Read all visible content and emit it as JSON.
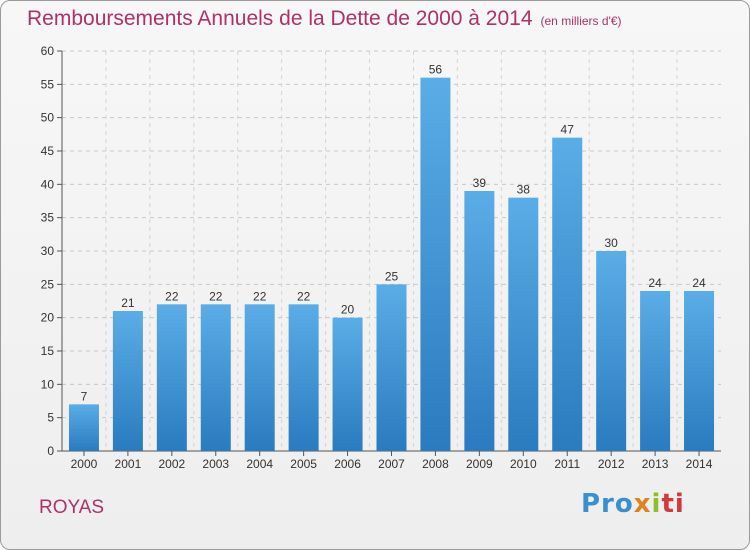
{
  "title": "Remboursements Annuels de la Dette de 2000 à 2014",
  "subtitle": "(en milliers d'€)",
  "commune": "ROYAS",
  "brand": {
    "parts": [
      {
        "text": "Pro",
        "color": "#3a8fd0"
      },
      {
        "text": "x",
        "color": "#e2821e"
      },
      {
        "text": "i",
        "color": "#8cbf2a"
      },
      {
        "text": "ti",
        "color": "#d23a3a"
      }
    ]
  },
  "colors": {
    "title": "#b0306a",
    "bar_top": "#5aade6",
    "bar_bottom": "#2a7bbf"
  },
  "chart_data": {
    "type": "bar",
    "title": "Remboursements Annuels de la Dette de 2000 à 2014",
    "subtitle": "(en milliers d'€)",
    "categories": [
      "2000",
      "2001",
      "2002",
      "2003",
      "2004",
      "2005",
      "2006",
      "2007",
      "2008",
      "2009",
      "2010",
      "2011",
      "2012",
      "2013",
      "2014"
    ],
    "values": [
      7,
      21,
      22,
      22,
      22,
      22,
      20,
      25,
      56,
      39,
      38,
      47,
      30,
      24,
      24
    ],
    "ylim": [
      0,
      60
    ],
    "yticks": [
      0,
      5,
      10,
      15,
      20,
      25,
      30,
      35,
      40,
      45,
      50,
      55,
      60
    ],
    "grid": true,
    "legend": "none"
  }
}
